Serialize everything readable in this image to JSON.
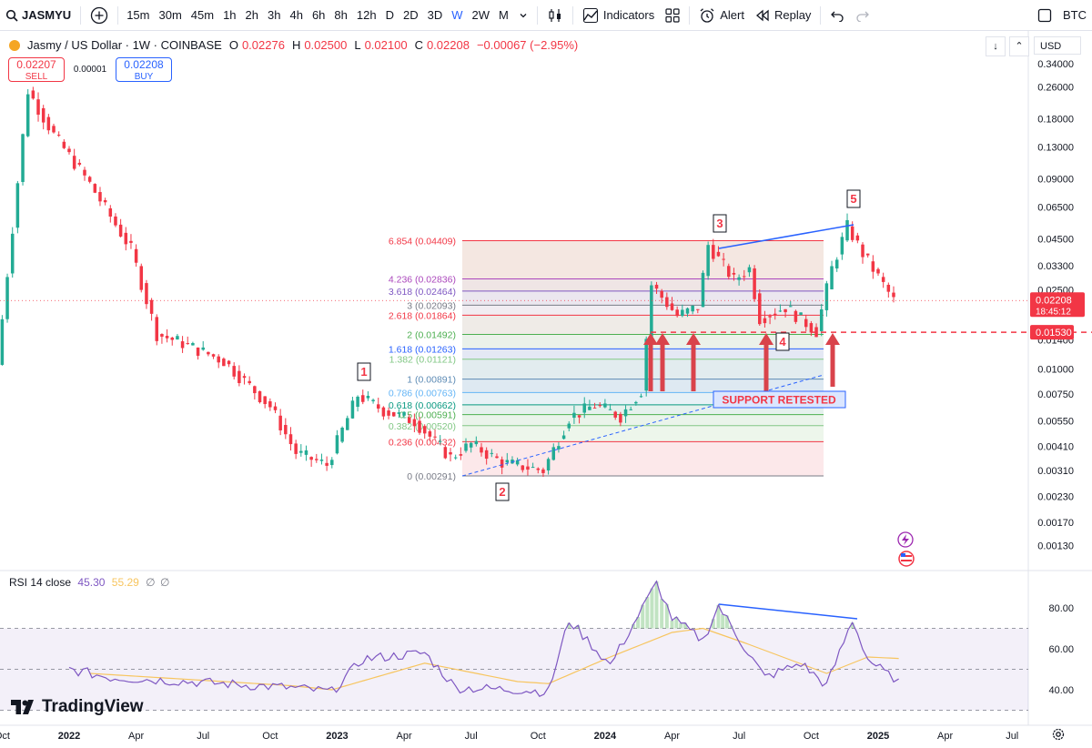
{
  "toolbar": {
    "symbol": "JASMYU",
    "timeframes": [
      "15m",
      "30m",
      "45m",
      "1h",
      "2h",
      "3h",
      "4h",
      "6h",
      "8h",
      "12h",
      "D",
      "2D",
      "3D",
      "W",
      "2W",
      "M"
    ],
    "active_timeframe": "W",
    "indicators_label": "Indicators",
    "alert_label": "Alert",
    "replay_label": "Replay",
    "right_symbol": "BTC"
  },
  "legend": {
    "title": "Jasmy / US Dollar · 1W · COINBASE",
    "o_label": "O",
    "o": "0.02276",
    "h_label": "H",
    "h": "0.02500",
    "l_label": "L",
    "l": "0.02100",
    "c_label": "C",
    "c": "0.02208",
    "change": "−0.00067 (−2.95%)"
  },
  "quotes": {
    "sell_price": "0.02207",
    "sell_label": "SELL",
    "spread": "0.00001",
    "buy_price": "0.02208",
    "buy_label": "BUY"
  },
  "currency": "USD",
  "rsi_legend": {
    "name": "RSI 14 close",
    "value1": "45.30",
    "value2": "55.29",
    "sym1": "∅",
    "sym2": "∅"
  },
  "brand": "TradingView",
  "colors": {
    "up": "#22ab94",
    "down": "#f23645",
    "accent": "#2962ff",
    "rsi_line": "#7e57c2",
    "rsi_ma": "#f7c55f"
  },
  "chart_data": [
    {
      "type": "candlestick",
      "title": "Jasmy / US Dollar · 1W · COINBASE",
      "y_scale": "log",
      "y_ticks": [
        "0.34000",
        "0.26000",
        "0.18000",
        "0.13000",
        "0.09000",
        "0.06500",
        "0.04500",
        "0.03300",
        "0.02500",
        "0.01400",
        "0.01000",
        "0.00750",
        "0.00550",
        "0.00410",
        "0.00310",
        "0.00230",
        "0.00170",
        "0.00130"
      ],
      "x_ticks": [
        "Oct",
        "2022",
        "Apr",
        "Jul",
        "Oct",
        "2023",
        "Apr",
        "Jul",
        "Oct",
        "2024",
        "Apr",
        "Jul",
        "Oct",
        "2025",
        "Apr",
        "Jul"
      ],
      "last_price": "0.02208",
      "countdown": "18:45:12",
      "support_price": "0.01530",
      "anchors": [
        {
          "date": "2021-10-04",
          "price": 0.0105
        },
        {
          "date": "2021-11-15",
          "price": 0.25
        },
        {
          "date": "2021-12-20",
          "price": 0.15
        },
        {
          "date": "2022-02-07",
          "price": 0.085
        },
        {
          "date": "2022-04-04",
          "price": 0.04
        },
        {
          "date": "2022-05-09",
          "price": 0.015
        },
        {
          "date": "2022-06-13",
          "price": 0.0135
        },
        {
          "date": "2022-08-08",
          "price": 0.011
        },
        {
          "date": "2022-10-10",
          "price": 0.0065
        },
        {
          "date": "2022-11-14",
          "price": 0.0038
        },
        {
          "date": "2022-12-26",
          "price": 0.0033
        },
        {
          "date": "2023-02-06",
          "price": 0.0074
        },
        {
          "date": "2023-03-13",
          "price": 0.0062
        },
        {
          "date": "2023-04-24",
          "price": 0.0055
        },
        {
          "date": "2023-06-12",
          "price": 0.0036
        },
        {
          "date": "2023-07-10",
          "price": 0.0042
        },
        {
          "date": "2023-08-21",
          "price": 0.0034
        },
        {
          "date": "2023-10-16",
          "price": 0.0031
        },
        {
          "date": "2023-11-20",
          "price": 0.0057
        },
        {
          "date": "2023-12-25",
          "price": 0.0066
        },
        {
          "date": "2024-01-29",
          "price": 0.0058
        },
        {
          "date": "2024-02-26",
          "price": 0.0078
        },
        {
          "date": "2024-03-11",
          "price": 0.0265
        },
        {
          "date": "2024-04-15",
          "price": 0.0185
        },
        {
          "date": "2024-05-13",
          "price": 0.0205
        },
        {
          "date": "2024-05-27",
          "price": 0.042
        },
        {
          "date": "2024-07-01",
          "price": 0.028
        },
        {
          "date": "2024-07-22",
          "price": 0.032
        },
        {
          "date": "2024-08-05",
          "price": 0.018
        },
        {
          "date": "2024-09-09",
          "price": 0.0205
        },
        {
          "date": "2024-10-21",
          "price": 0.0155
        },
        {
          "date": "2024-11-11",
          "price": 0.032
        },
        {
          "date": "2024-12-02",
          "price": 0.052
        },
        {
          "date": "2024-12-23",
          "price": 0.038
        },
        {
          "date": "2025-01-13",
          "price": 0.029
        },
        {
          "date": "2025-02-03",
          "price": 0.0221
        }
      ],
      "fibonacci": {
        "levels": [
          {
            "ratio": "6.854",
            "price": "0.04409",
            "color": "#f23645"
          },
          {
            "ratio": "4.236",
            "price": "0.02836",
            "color": "#ab47bc"
          },
          {
            "ratio": "3.618",
            "price": "0.02464",
            "color": "#7e57c2"
          },
          {
            "ratio": "3",
            "price": "0.02093",
            "color": "#787b86"
          },
          {
            "ratio": "2.618",
            "price": "0.01864",
            "color": "#f23645"
          },
          {
            "ratio": "2",
            "price": "0.01492",
            "color": "#4caf50"
          },
          {
            "ratio": "1.618",
            "price": "0.01263",
            "color": "#2962ff"
          },
          {
            "ratio": "1.382",
            "price": "0.01121",
            "color": "#81c784"
          },
          {
            "ratio": "1",
            "price": "0.00891",
            "color": "#5d8bb5"
          },
          {
            "ratio": "0.786",
            "price": "0.00763",
            "color": "#64b5f6"
          },
          {
            "ratio": "0.618",
            "price": "0.00662",
            "color": "#089981"
          },
          {
            "ratio": "0.5",
            "price": "0.00591",
            "color": "#4caf50"
          },
          {
            "ratio": "0.382",
            "price": "0.00520",
            "color": "#81c784"
          },
          {
            "ratio": "0.236",
            "price": "0.00432",
            "color": "#f23645"
          },
          {
            "ratio": "0",
            "price": "0.00291",
            "color": "#787b86"
          }
        ],
        "level_labels": [
          "6.854 (0.04409)",
          "4.236 (0.02836)",
          "3.618 (0.02464)",
          "3 (0.02093)",
          "2.618 (0.01864)",
          "2 (0.01492)",
          "1.618 (0.01263)",
          "1.382 (0.01121)",
          "1 (0.00891)",
          "0.786 (0.00763)",
          "0.618 (0.00662)",
          "0.5 (0.00591)",
          "0.382 (0.00520)",
          "0.236 (0.00432)",
          "0 (0.00291)"
        ]
      },
      "annotations": {
        "wave_labels": [
          "1",
          "2",
          "3",
          "4",
          "5"
        ],
        "support_text": "SUPPORT RETESTED"
      }
    },
    {
      "type": "line",
      "title": "RSI 14 close",
      "y_ticks": [
        "80.00",
        "60.00",
        "40.00"
      ],
      "band": [
        30,
        70
      ],
      "series": [
        {
          "name": "RSI",
          "anchors": [
            {
              "date": "2022-01-03",
              "value": 50
            },
            {
              "date": "2022-02-28",
              "value": 46
            },
            {
              "date": "2022-06-13",
              "value": 44
            },
            {
              "date": "2022-10-31",
              "value": 41
            },
            {
              "date": "2022-12-26",
              "value": 39
            },
            {
              "date": "2023-02-06",
              "value": 55
            },
            {
              "date": "2023-05-01",
              "value": 58
            },
            {
              "date": "2023-06-12",
              "value": 41
            },
            {
              "date": "2023-09-04",
              "value": 40
            },
            {
              "date": "2023-10-16",
              "value": 39
            },
            {
              "date": "2023-11-13",
              "value": 74
            },
            {
              "date": "2024-01-08",
              "value": 52
            },
            {
              "date": "2024-03-11",
              "value": 92
            },
            {
              "date": "2024-04-01",
              "value": 75
            },
            {
              "date": "2024-05-13",
              "value": 64
            },
            {
              "date": "2024-06-03",
              "value": 81
            },
            {
              "date": "2024-07-08",
              "value": 61
            },
            {
              "date": "2024-08-05",
              "value": 46
            },
            {
              "date": "2024-09-23",
              "value": 53
            },
            {
              "date": "2024-10-28",
              "value": 42
            },
            {
              "date": "2024-12-02",
              "value": 74
            },
            {
              "date": "2024-12-23",
              "value": 55
            },
            {
              "date": "2025-01-20",
              "value": 47
            },
            {
              "date": "2025-02-03",
              "value": 45.3
            }
          ]
        },
        {
          "name": "RSI-based MA",
          "anchors": [
            {
              "date": "2022-01-31",
              "value": 48
            },
            {
              "date": "2022-10-31",
              "value": 42
            },
            {
              "date": "2022-12-26",
              "value": 40
            },
            {
              "date": "2023-05-01",
              "value": 53
            },
            {
              "date": "2023-09-04",
              "value": 44
            },
            {
              "date": "2023-10-16",
              "value": 43
            },
            {
              "date": "2024-01-08",
              "value": 56
            },
            {
              "date": "2024-04-01",
              "value": 68
            },
            {
              "date": "2024-05-13",
              "value": 70
            },
            {
              "date": "2024-07-08",
              "value": 63
            },
            {
              "date": "2024-10-28",
              "value": 48
            },
            {
              "date": "2024-12-23",
              "value": 56
            },
            {
              "date": "2025-02-03",
              "value": 55.29
            }
          ]
        }
      ]
    }
  ]
}
